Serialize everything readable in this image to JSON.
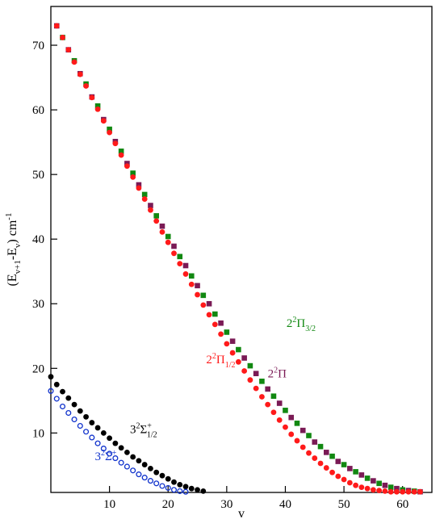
{
  "chart_data": {
    "type": "scatter",
    "xlabel": "v",
    "ylabel": "(Eᵥ₊₁-Eᵥ) cm⁻¹",
    "ylabel_parts": {
      "open": "(E",
      "sub1": "v+1",
      "mid": "-E",
      "sub2": "v",
      "close": ") cm",
      "sup": "-1"
    },
    "xlim": [
      0,
      65
    ],
    "ylim": [
      0.8,
      76
    ],
    "x_ticks": [
      10,
      20,
      30,
      40,
      50,
      60
    ],
    "y_ticks": [
      10,
      20,
      30,
      40,
      50,
      60,
      70
    ],
    "series": [
      {
        "name": "2²Π",
        "label_parts": {
          "pre": "2",
          "sup": "2",
          "base": "Π",
          "sub": ""
        },
        "color": "#7a1a55",
        "marker": "square",
        "x": [
          1,
          3,
          5,
          7,
          9,
          11,
          13,
          15,
          17,
          19,
          21,
          23,
          25,
          27,
          29,
          31,
          33,
          35,
          37,
          39,
          41,
          43,
          45,
          47,
          49,
          51,
          53,
          55,
          57,
          59,
          61,
          63
        ],
        "y": [
          73.0,
          69.3,
          65.6,
          62.0,
          58.5,
          55.1,
          51.7,
          48.4,
          45.2,
          42.0,
          38.9,
          35.9,
          32.8,
          30.0,
          27.0,
          24.2,
          21.6,
          19.2,
          16.8,
          14.6,
          12.4,
          10.4,
          8.6,
          7.0,
          5.6,
          4.5,
          3.5,
          2.6,
          1.9,
          1.4,
          1.1,
          0.9
        ]
      },
      {
        "name": "2²Π₃₂",
        "label_parts": {
          "pre": "2",
          "sup": "2",
          "base": "Π",
          "sub": "3/2"
        },
        "color": "#118811",
        "marker": "square",
        "x": [
          2,
          4,
          6,
          8,
          10,
          12,
          14,
          16,
          18,
          20,
          22,
          24,
          26,
          28,
          30,
          32,
          34,
          36,
          38,
          40,
          42,
          44,
          46,
          48,
          50,
          52,
          54,
          56,
          58,
          60,
          62
        ],
        "y": [
          71.2,
          67.6,
          64.0,
          60.6,
          57.0,
          53.6,
          50.2,
          46.9,
          43.6,
          40.4,
          37.3,
          34.3,
          31.3,
          28.4,
          25.6,
          22.9,
          20.4,
          18.0,
          15.7,
          13.5,
          11.5,
          9.6,
          7.9,
          6.4,
          5.1,
          4.0,
          3.0,
          2.2,
          1.6,
          1.2,
          1.0
        ]
      },
      {
        "name": "2²Π₁₂",
        "label_parts": {
          "pre": "2",
          "sup": "2",
          "base": "Π",
          "sub": "1/2"
        },
        "color": "#ff1a1a",
        "marker": "circle",
        "x": [
          1,
          2,
          3,
          4,
          5,
          6,
          7,
          8,
          9,
          10,
          11,
          12,
          13,
          14,
          15,
          16,
          17,
          18,
          19,
          20,
          21,
          22,
          23,
          24,
          25,
          26,
          27,
          28,
          29,
          30,
          31,
          32,
          33,
          34,
          35,
          36,
          37,
          38,
          39,
          40,
          41,
          42,
          43,
          44,
          45,
          46,
          47,
          48,
          49,
          50,
          51,
          52,
          53,
          54,
          55,
          56,
          57,
          58,
          59,
          60,
          61,
          62,
          63
        ],
        "y": [
          73.0,
          71.2,
          69.3,
          67.4,
          65.5,
          63.7,
          61.9,
          60.1,
          58.3,
          56.5,
          54.8,
          53.0,
          51.3,
          49.6,
          47.9,
          46.2,
          44.5,
          42.8,
          41.1,
          39.5,
          37.8,
          36.2,
          34.6,
          33.0,
          31.4,
          29.8,
          28.3,
          26.8,
          25.3,
          23.8,
          22.4,
          21.0,
          19.6,
          18.2,
          16.9,
          15.6,
          14.4,
          13.2,
          12.0,
          10.9,
          9.8,
          8.8,
          7.8,
          6.9,
          6.1,
          5.3,
          4.6,
          3.9,
          3.3,
          2.8,
          2.3,
          1.9,
          1.6,
          1.4,
          1.2,
          1.1,
          1.0,
          0.9,
          0.9,
          0.9,
          0.9,
          0.9,
          0.9
        ]
      },
      {
        "name": "3²Σ⁺₁₂",
        "label_parts": {
          "pre": "3",
          "sup": "2",
          "base": "Σ",
          "sup2": "+",
          "sub": "1/2"
        },
        "color": "#000000",
        "marker": "circle",
        "x": [
          0,
          1,
          2,
          3,
          4,
          5,
          6,
          7,
          8,
          9,
          10,
          11,
          12,
          13,
          14,
          15,
          16,
          17,
          18,
          19,
          20,
          21,
          22,
          23,
          24,
          25,
          26
        ],
        "y": [
          18.7,
          17.5,
          16.4,
          15.4,
          14.4,
          13.4,
          12.5,
          11.6,
          10.8,
          10.0,
          9.2,
          8.4,
          7.7,
          7.0,
          6.3,
          5.7,
          5.1,
          4.5,
          3.9,
          3.4,
          2.9,
          2.4,
          2.0,
          1.7,
          1.4,
          1.2,
          1.0
        ]
      },
      {
        "name": "3²Σ⁺",
        "label_parts": {
          "pre": "3",
          "sup": "2",
          "base": "Σ",
          "sup2": "+",
          "sub": ""
        },
        "color": "#1133cc",
        "marker": "open-circle",
        "x": [
          0,
          1,
          2,
          3,
          4,
          5,
          6,
          7,
          8,
          9,
          10,
          11,
          12,
          13,
          14,
          15,
          16,
          17,
          18,
          19,
          20,
          21,
          22,
          23
        ],
        "y": [
          16.5,
          15.3,
          14.1,
          13.1,
          12.1,
          11.1,
          10.2,
          9.3,
          8.4,
          7.6,
          6.8,
          6.1,
          5.4,
          4.8,
          4.2,
          3.6,
          3.1,
          2.6,
          2.2,
          1.8,
          1.5,
          1.2,
          1.0,
          0.9
        ]
      }
    ],
    "annotations": [
      {
        "series": 1,
        "x": 40.2,
        "y": 26.4
      },
      {
        "series": 2,
        "x": 26.5,
        "y": 20.8
      },
      {
        "series": 0,
        "x": 37.0,
        "y": 18.6
      },
      {
        "series": 3,
        "x": 13.5,
        "y": 10.0
      },
      {
        "series": 4,
        "x": 7.5,
        "y": 5.8
      }
    ]
  }
}
